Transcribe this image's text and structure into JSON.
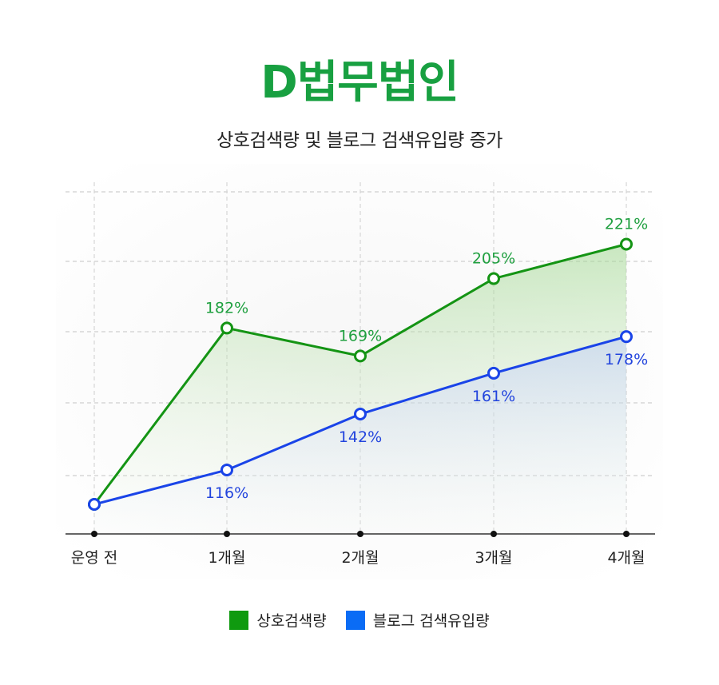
{
  "header": {
    "brand": "D법무법인",
    "subtitle": "상호검색량 및 블로그 검색유입량 증가"
  },
  "colors": {
    "brand": "#18a041",
    "series_green": "#149414",
    "series_blue": "#1a44e8",
    "label_green": "#20a040",
    "label_blue": "#2244dd",
    "legend_green": "#0f9a0f",
    "legend_blue": "#0a6cf5"
  },
  "chart_data": {
    "type": "line",
    "categories": [
      "운영 전",
      "1개월",
      "2개월",
      "3개월",
      "4개월"
    ],
    "series": [
      {
        "name": "상호검색량",
        "values": [
          100,
          182,
          169,
          205,
          221
        ],
        "labels": [
          "",
          "182%",
          "169%",
          "205%",
          "221%"
        ]
      },
      {
        "name": "블로그 검색유입량",
        "values": [
          100,
          116,
          142,
          161,
          178
        ],
        "labels": [
          "",
          "116%",
          "142%",
          "161%",
          "178%"
        ]
      }
    ],
    "grid": true,
    "legend_position": "bottom"
  }
}
